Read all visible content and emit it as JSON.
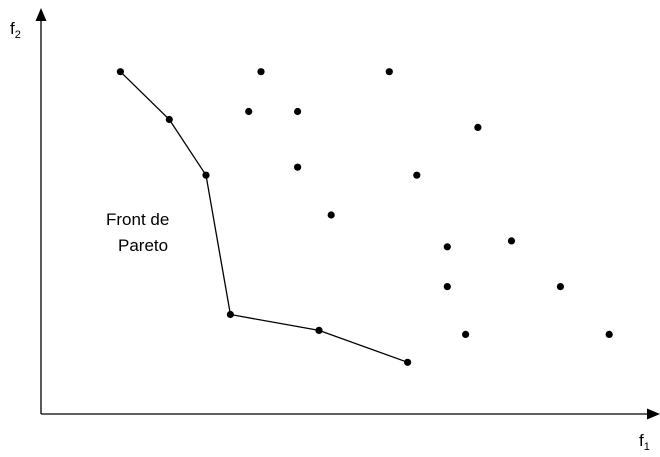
{
  "chart_data": {
    "type": "scatter",
    "xlabel": "f",
    "xlabel_subscript": "1",
    "ylabel": "f",
    "ylabel_subscript": "2",
    "annotation_lines": [
      "Front de",
      "Pareto"
    ],
    "xlim": [
      0,
      100
    ],
    "ylim": [
      0,
      100
    ],
    "grid": false,
    "colors": {
      "axis": "#000000",
      "points": "#000000",
      "front": "#000000"
    },
    "pareto_front": [
      {
        "x": 13,
        "y": 86
      },
      {
        "x": 21,
        "y": 74
      },
      {
        "x": 27,
        "y": 60
      },
      {
        "x": 31,
        "y": 25
      },
      {
        "x": 45.5,
        "y": 21
      },
      {
        "x": 60,
        "y": 13
      }
    ],
    "dominated_points": [
      {
        "x": 36,
        "y": 86
      },
      {
        "x": 57,
        "y": 86
      },
      {
        "x": 34,
        "y": 76
      },
      {
        "x": 42,
        "y": 76
      },
      {
        "x": 71.5,
        "y": 72
      },
      {
        "x": 42,
        "y": 62
      },
      {
        "x": 61.5,
        "y": 60
      },
      {
        "x": 47.5,
        "y": 50
      },
      {
        "x": 66.5,
        "y": 42
      },
      {
        "x": 77,
        "y": 43.5
      },
      {
        "x": 66.5,
        "y": 32
      },
      {
        "x": 85,
        "y": 32
      },
      {
        "x": 69.5,
        "y": 20
      },
      {
        "x": 93,
        "y": 20
      }
    ]
  }
}
